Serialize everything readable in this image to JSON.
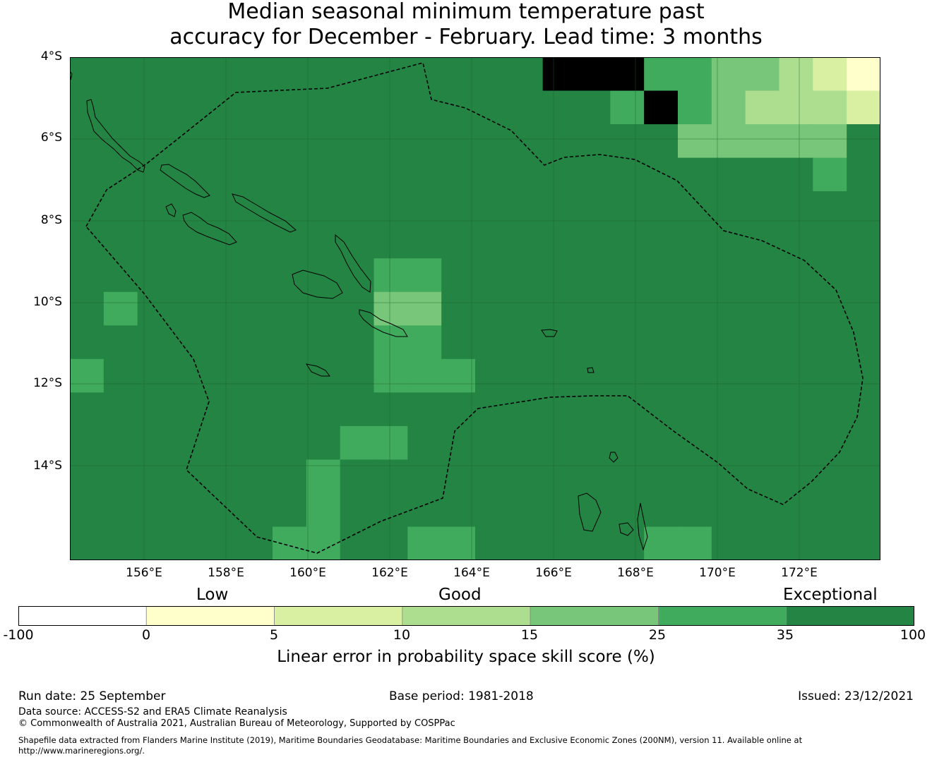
{
  "title": {
    "line1": "Median seasonal minimum temperature past",
    "line2": "accuracy for December - February. Lead time: 3 months"
  },
  "map": {
    "lat_labels": [
      "4°S",
      "6°S",
      "8°S",
      "10°S",
      "12°S",
      "14°S"
    ],
    "lon_labels": [
      "156°E",
      "158°E",
      "160°E",
      "162°E",
      "164°E",
      "166°E",
      "168°E",
      "170°E",
      "172°E"
    ],
    "grid_columns": 24,
    "grid_rows": 15,
    "skill_grid": [
      "666666666666667775544321",
      "666666666666666657543332",
      "666666666666666666444446",
      "666666666666666666666656",
      "666666666666666666666666",
      "666666666666666666666666",
      "666666666556666666666666",
      "656666666446666666666666",
      "666666666556666666666666",
      "566666666555666666666666",
      "666666666666666666666666",
      "666666665566666666666666",
      "666666656666666666666666",
      "666666656666666666666666",
      "666666556655666665566666"
    ],
    "legend_colors": [
      "#ffffff",
      "#ffffcc",
      "#d9f0a3",
      "#addd8e",
      "#78c679",
      "#41ab5d",
      "#238443"
    ],
    "grid_line_color": "#1b5e2a",
    "coastline_color": "#000000"
  },
  "legend": {
    "categories": [
      "Low",
      "Good",
      "Exceptional"
    ],
    "ticks": [
      "-100",
      "0",
      "5",
      "10",
      "15",
      "25",
      "35",
      "100"
    ],
    "xlabel": "Linear error in probability space skill score (%)"
  },
  "footer": {
    "run_date": "Run date: 25 September",
    "base_period": "Base period: 1981-2018",
    "issued": "Issued: 23/12/2021",
    "data_source": "Data source: ACCESS-S2 and ERA5 Climate Reanalysis",
    "copyright": "© Commonwealth of Australia 2021, Australian Bureau of Meteorology, Supported by COSPPac",
    "shapefile_1": "Shapefile data extracted from Flanders Marine Institute (2019), Maritime Boundaries Geodatabase: Maritime Boundaries and Exclusive Economic Zones (200NM), version 11. Available online at",
    "shapefile_2": "http://www.marineregions.org/."
  }
}
